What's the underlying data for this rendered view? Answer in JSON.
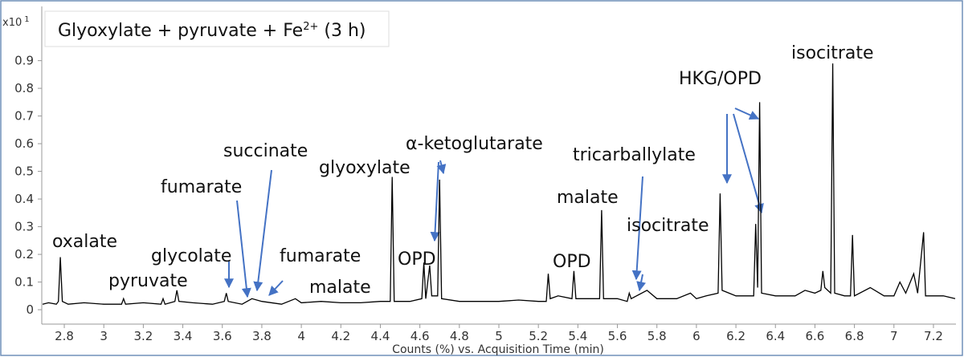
{
  "chart_data": {
    "type": "line",
    "title": "Glyoxylate + pyruvate + Fe",
    "title_superscript": "2+",
    "title_suffix": " (3 h)",
    "y_multiplier": "x10",
    "y_multiplier_exponent": "1",
    "x_label": "Counts (%) vs. Acquisition Time (min)",
    "color": "#000000",
    "x": [
      2.69,
      2.72,
      2.76,
      2.77,
      2.78,
      2.79,
      2.82,
      2.9,
      3.0,
      3.09,
      3.1,
      3.11,
      3.2,
      3.29,
      3.3,
      3.31,
      3.36,
      3.37,
      3.38,
      3.45,
      3.55,
      3.61,
      3.62,
      3.63,
      3.7,
      3.75,
      3.8,
      3.9,
      3.97,
      4.0,
      4.1,
      4.2,
      4.3,
      4.4,
      4.45,
      4.46,
      4.47,
      4.55,
      4.61,
      4.62,
      4.63,
      4.65,
      4.66,
      4.69,
      4.7,
      4.71,
      4.8,
      4.9,
      5.0,
      5.1,
      5.2,
      5.24,
      5.25,
      5.26,
      5.3,
      5.37,
      5.38,
      5.39,
      5.45,
      5.51,
      5.52,
      5.53,
      5.6,
      5.65,
      5.66,
      5.67,
      5.75,
      5.8,
      5.9,
      5.97,
      6.0,
      6.05,
      6.11,
      6.12,
      6.13,
      6.2,
      6.29,
      6.3,
      6.31,
      6.32,
      6.33,
      6.4,
      6.5,
      6.55,
      6.6,
      6.63,
      6.64,
      6.65,
      6.68,
      6.69,
      6.7,
      6.75,
      6.78,
      6.79,
      6.8,
      6.88,
      6.95,
      7.0,
      7.03,
      7.06,
      7.1,
      7.12,
      7.15,
      7.16,
      7.2,
      7.25,
      7.31
    ],
    "values": [
      0.02,
      0.025,
      0.02,
      0.03,
      0.19,
      0.03,
      0.02,
      0.025,
      0.02,
      0.02,
      0.04,
      0.02,
      0.025,
      0.02,
      0.04,
      0.02,
      0.03,
      0.07,
      0.03,
      0.025,
      0.02,
      0.03,
      0.06,
      0.03,
      0.02,
      0.04,
      0.03,
      0.02,
      0.04,
      0.025,
      0.03,
      0.025,
      0.025,
      0.03,
      0.03,
      0.48,
      0.03,
      0.03,
      0.04,
      0.17,
      0.04,
      0.16,
      0.05,
      0.05,
      0.47,
      0.04,
      0.03,
      0.03,
      0.03,
      0.035,
      0.03,
      0.03,
      0.13,
      0.04,
      0.05,
      0.04,
      0.14,
      0.04,
      0.04,
      0.04,
      0.36,
      0.04,
      0.04,
      0.03,
      0.06,
      0.04,
      0.07,
      0.04,
      0.04,
      0.06,
      0.04,
      0.05,
      0.06,
      0.42,
      0.07,
      0.05,
      0.05,
      0.31,
      0.08,
      0.75,
      0.06,
      0.05,
      0.05,
      0.07,
      0.06,
      0.07,
      0.14,
      0.08,
      0.06,
      0.89,
      0.06,
      0.05,
      0.05,
      0.27,
      0.05,
      0.08,
      0.05,
      0.05,
      0.1,
      0.06,
      0.13,
      0.06,
      0.28,
      0.05,
      0.05,
      0.05,
      0.04
    ],
    "xlim": [
      2.686,
      7.314
    ],
    "ylim": [
      -0.052,
      1.096
    ],
    "xticks": [
      2.8,
      3,
      3.2,
      3.4,
      3.6,
      3.8,
      4,
      4.2,
      4.4,
      4.6,
      4.8,
      5,
      5.2,
      5.4,
      5.6,
      5.8,
      6,
      6.2,
      6.4,
      6.6,
      6.8,
      7,
      7.2
    ],
    "yticks": [
      0,
      0.1,
      0.2,
      0.3,
      0.4,
      0.5,
      0.6,
      0.7,
      0.8,
      0.9
    ],
    "annotations": [
      "oxalate",
      "pyruvate",
      "glycolate",
      "fumarate",
      "succinate",
      "fumarate",
      "malate",
      "glyoxylate",
      "α-ketoglutarate",
      "OPD",
      "OPD",
      "malate",
      "tricarballylate",
      "isocitrate",
      "HKG/OPD",
      "isocitrate"
    ]
  }
}
